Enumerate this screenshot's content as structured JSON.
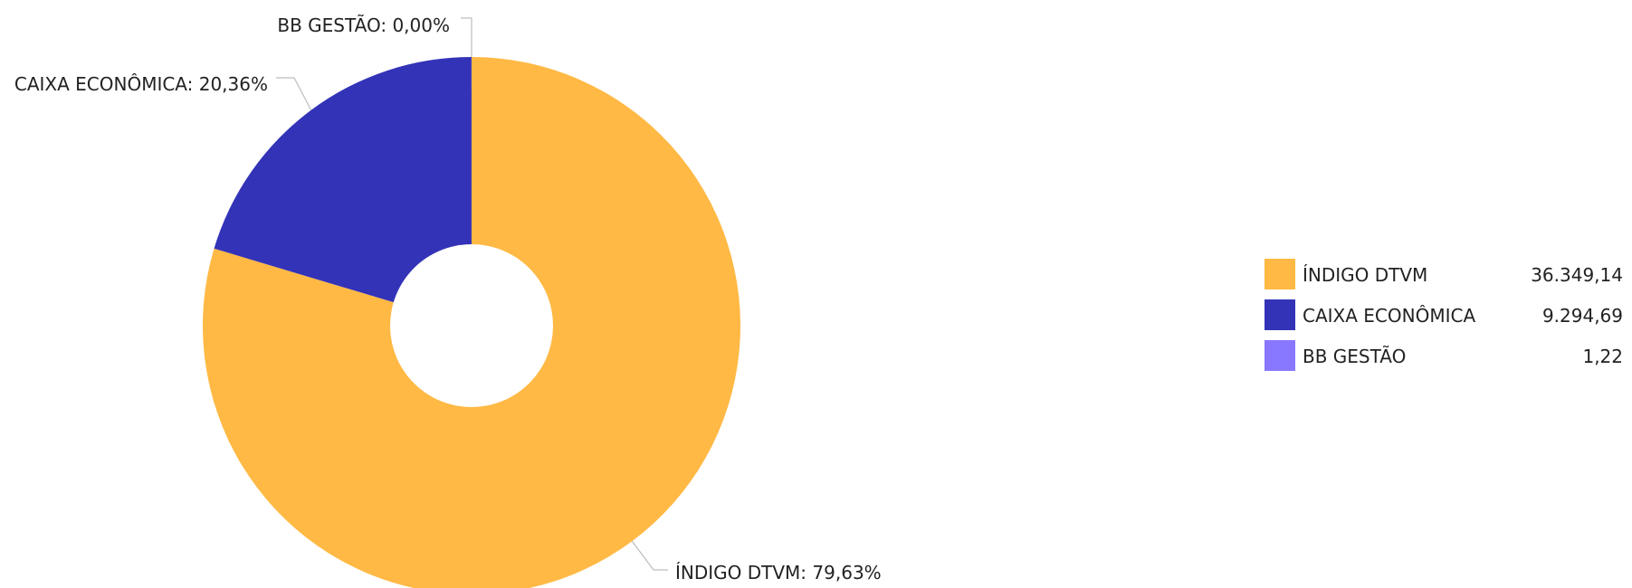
{
  "chart_data": {
    "type": "pie",
    "donut": true,
    "title": "",
    "slices": [
      {
        "name": "ÍNDIGO DTVM",
        "value": 36349.14,
        "value_label": "36.349,14",
        "percent_label": "79,63%",
        "color": "#ffb944"
      },
      {
        "name": "CAIXA ECONÔMICA",
        "value": 9294.69,
        "value_label": "9.294,69",
        "percent_label": "20,36%",
        "color": "#3333b8"
      },
      {
        "name": "BB GESTÃO",
        "value": 1.22,
        "value_label": "1,22",
        "percent_label": "0,00%",
        "color": "#8877ff"
      }
    ],
    "legend_position": "right"
  }
}
